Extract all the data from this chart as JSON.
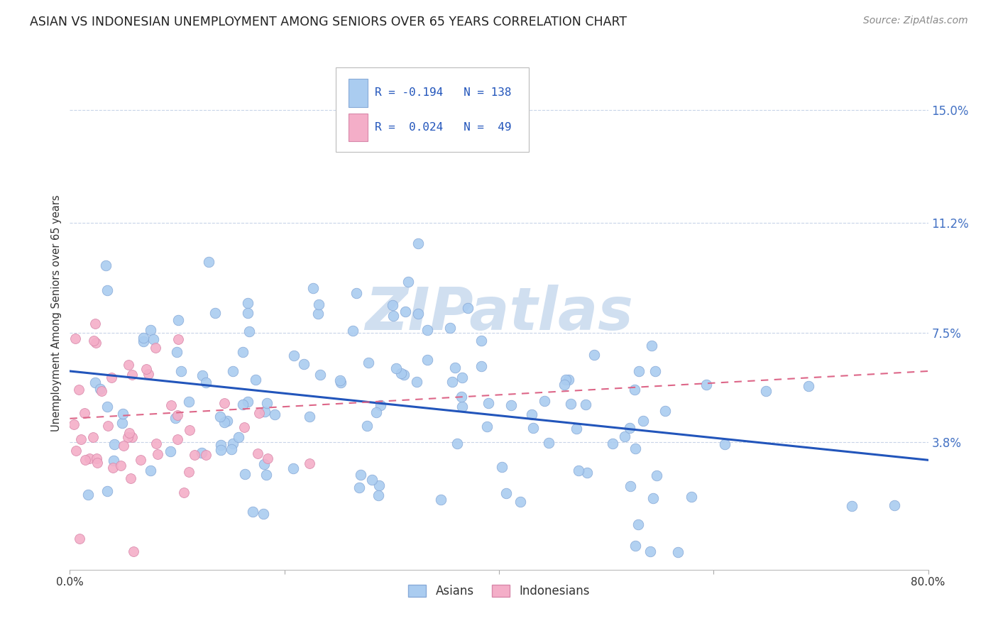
{
  "title": "ASIAN VS INDONESIAN UNEMPLOYMENT AMONG SENIORS OVER 65 YEARS CORRELATION CHART",
  "source": "Source: ZipAtlas.com",
  "ylabel": "Unemployment Among Seniors over 65 years",
  "ytick_labels": [
    "3.8%",
    "7.5%",
    "11.2%",
    "15.0%"
  ],
  "ytick_values": [
    0.038,
    0.075,
    0.112,
    0.15
  ],
  "xlim": [
    0.0,
    0.8
  ],
  "ylim": [
    -0.005,
    0.168
  ],
  "legend_label1": "Asians",
  "legend_label2": "Indonesians",
  "asian_color": "#aaccf0",
  "asian_edge_color": "#88aad8",
  "indonesian_color": "#f4aec8",
  "indonesian_edge_color": "#d888aa",
  "asian_line_color": "#2255bb",
  "indonesian_line_color": "#dd6688",
  "background_color": "#ffffff",
  "grid_color": "#c8d4e8",
  "title_fontsize": 12.5,
  "source_fontsize": 10,
  "watermark_text": "ZIPatlas",
  "watermark_color": "#d0dff0",
  "watermark_fontsize": 60,
  "asian_R": -0.194,
  "asian_N": 138,
  "indonesian_R": 0.024,
  "indonesian_N": 49,
  "trend_asian_x0": 0.0,
  "trend_asian_y0": 0.062,
  "trend_asian_x1": 0.8,
  "trend_asian_y1": 0.032,
  "trend_indo_x0": 0.0,
  "trend_indo_y0": 0.046,
  "trend_indo_x1": 0.8,
  "trend_indo_y1": 0.062
}
